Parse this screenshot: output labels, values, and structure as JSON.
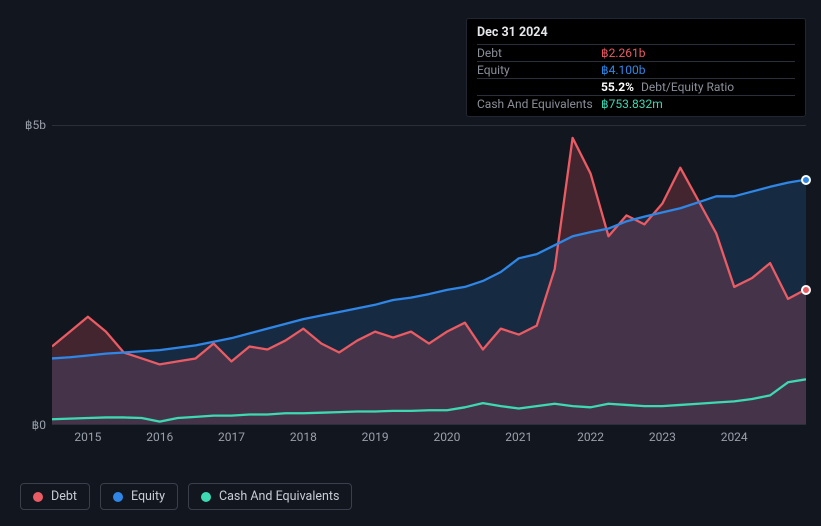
{
  "chart": {
    "type": "line-area",
    "background_color": "#12161f",
    "plot_border_color": "#2a2f3a",
    "text_color_muted": "#9aa0aa",
    "y_axis": {
      "min": 0,
      "max": 5,
      "ticks": [
        {
          "v": 0,
          "label": "฿0"
        },
        {
          "v": 5,
          "label": "฿5b"
        }
      ]
    },
    "x_axis": {
      "min": 2014.5,
      "max": 2025.0,
      "ticks": [
        2015,
        2016,
        2017,
        2018,
        2019,
        2020,
        2021,
        2022,
        2023,
        2024
      ]
    },
    "series": {
      "debt": {
        "label": "Debt",
        "color": "#eb5b63",
        "fill_opacity": 0.22,
        "points": [
          [
            2014.5,
            1.3
          ],
          [
            2014.75,
            1.55
          ],
          [
            2015.0,
            1.8
          ],
          [
            2015.25,
            1.55
          ],
          [
            2015.5,
            1.2
          ],
          [
            2015.75,
            1.1
          ],
          [
            2016.0,
            1.0
          ],
          [
            2016.25,
            1.05
          ],
          [
            2016.5,
            1.1
          ],
          [
            2016.75,
            1.35
          ],
          [
            2017.0,
            1.05
          ],
          [
            2017.25,
            1.3
          ],
          [
            2017.5,
            1.25
          ],
          [
            2017.75,
            1.4
          ],
          [
            2018.0,
            1.6
          ],
          [
            2018.25,
            1.35
          ],
          [
            2018.5,
            1.2
          ],
          [
            2018.75,
            1.4
          ],
          [
            2019.0,
            1.55
          ],
          [
            2019.25,
            1.45
          ],
          [
            2019.5,
            1.55
          ],
          [
            2019.75,
            1.35
          ],
          [
            2020.0,
            1.55
          ],
          [
            2020.25,
            1.7
          ],
          [
            2020.5,
            1.25
          ],
          [
            2020.75,
            1.6
          ],
          [
            2021.0,
            1.5
          ],
          [
            2021.25,
            1.65
          ],
          [
            2021.5,
            2.6
          ],
          [
            2021.75,
            4.8
          ],
          [
            2022.0,
            4.2
          ],
          [
            2022.25,
            3.15
          ],
          [
            2022.5,
            3.5
          ],
          [
            2022.75,
            3.35
          ],
          [
            2023.0,
            3.7
          ],
          [
            2023.25,
            4.3
          ],
          [
            2023.5,
            3.75
          ],
          [
            2023.75,
            3.2
          ],
          [
            2024.0,
            2.3
          ],
          [
            2024.25,
            2.45
          ],
          [
            2024.5,
            2.7
          ],
          [
            2024.75,
            2.1
          ],
          [
            2025.0,
            2.26
          ]
        ]
      },
      "equity": {
        "label": "Equity",
        "color": "#2f86e6",
        "fill_opacity": 0.18,
        "points": [
          [
            2014.5,
            1.1
          ],
          [
            2014.75,
            1.12
          ],
          [
            2015.0,
            1.15
          ],
          [
            2015.25,
            1.18
          ],
          [
            2015.5,
            1.2
          ],
          [
            2015.75,
            1.22
          ],
          [
            2016.0,
            1.24
          ],
          [
            2016.25,
            1.28
          ],
          [
            2016.5,
            1.32
          ],
          [
            2016.75,
            1.38
          ],
          [
            2017.0,
            1.44
          ],
          [
            2017.25,
            1.52
          ],
          [
            2017.5,
            1.6
          ],
          [
            2017.75,
            1.68
          ],
          [
            2018.0,
            1.76
          ],
          [
            2018.25,
            1.82
          ],
          [
            2018.5,
            1.88
          ],
          [
            2018.75,
            1.94
          ],
          [
            2019.0,
            2.0
          ],
          [
            2019.25,
            2.08
          ],
          [
            2019.5,
            2.12
          ],
          [
            2019.75,
            2.18
          ],
          [
            2020.0,
            2.25
          ],
          [
            2020.25,
            2.3
          ],
          [
            2020.5,
            2.4
          ],
          [
            2020.75,
            2.55
          ],
          [
            2021.0,
            2.78
          ],
          [
            2021.25,
            2.85
          ],
          [
            2021.5,
            3.0
          ],
          [
            2021.75,
            3.15
          ],
          [
            2022.0,
            3.22
          ],
          [
            2022.25,
            3.28
          ],
          [
            2022.5,
            3.4
          ],
          [
            2022.75,
            3.48
          ],
          [
            2023.0,
            3.55
          ],
          [
            2023.25,
            3.62
          ],
          [
            2023.5,
            3.72
          ],
          [
            2023.75,
            3.82
          ],
          [
            2024.0,
            3.82
          ],
          [
            2024.25,
            3.9
          ],
          [
            2024.5,
            3.98
          ],
          [
            2024.75,
            4.05
          ],
          [
            2025.0,
            4.1
          ]
        ]
      },
      "cash": {
        "label": "Cash And Equivalents",
        "color": "#3dd9b3",
        "fill_opacity": 0.0,
        "points": [
          [
            2014.5,
            0.08
          ],
          [
            2014.75,
            0.09
          ],
          [
            2015.0,
            0.1
          ],
          [
            2015.25,
            0.11
          ],
          [
            2015.5,
            0.11
          ],
          [
            2015.75,
            0.1
          ],
          [
            2016.0,
            0.04
          ],
          [
            2016.25,
            0.1
          ],
          [
            2016.5,
            0.12
          ],
          [
            2016.75,
            0.14
          ],
          [
            2017.0,
            0.14
          ],
          [
            2017.25,
            0.16
          ],
          [
            2017.5,
            0.16
          ],
          [
            2017.75,
            0.18
          ],
          [
            2018.0,
            0.18
          ],
          [
            2018.25,
            0.19
          ],
          [
            2018.5,
            0.2
          ],
          [
            2018.75,
            0.21
          ],
          [
            2019.0,
            0.21
          ],
          [
            2019.25,
            0.22
          ],
          [
            2019.5,
            0.22
          ],
          [
            2019.75,
            0.23
          ],
          [
            2020.0,
            0.23
          ],
          [
            2020.25,
            0.28
          ],
          [
            2020.5,
            0.35
          ],
          [
            2020.75,
            0.3
          ],
          [
            2021.0,
            0.26
          ],
          [
            2021.25,
            0.3
          ],
          [
            2021.5,
            0.34
          ],
          [
            2021.75,
            0.3
          ],
          [
            2022.0,
            0.28
          ],
          [
            2022.25,
            0.34
          ],
          [
            2022.5,
            0.32
          ],
          [
            2022.75,
            0.3
          ],
          [
            2023.0,
            0.3
          ],
          [
            2023.25,
            0.32
          ],
          [
            2023.5,
            0.34
          ],
          [
            2023.75,
            0.36
          ],
          [
            2024.0,
            0.38
          ],
          [
            2024.25,
            0.42
          ],
          [
            2024.5,
            0.48
          ],
          [
            2024.75,
            0.7
          ],
          [
            2025.0,
            0.75
          ]
        ]
      }
    },
    "line_width": 2.3
  },
  "tooltip": {
    "date": "Dec 31 2024",
    "rows": [
      {
        "key": "Debt",
        "val": "฿2.261b",
        "color": "#eb5b63"
      },
      {
        "key": "Equity",
        "val": "฿4.100b",
        "color": "#2f86e6"
      },
      {
        "key": "",
        "val": "55.2%",
        "suffix": "Debt/Equity Ratio",
        "color": "#ffffff"
      },
      {
        "key": "Cash And Equivalents",
        "val": "฿753.832m",
        "color": "#3dd9b3"
      }
    ]
  },
  "legend": [
    {
      "label": "Debt",
      "color": "#eb5b63"
    },
    {
      "label": "Equity",
      "color": "#2f86e6"
    },
    {
      "label": "Cash And Equivalents",
      "color": "#3dd9b3"
    }
  ]
}
